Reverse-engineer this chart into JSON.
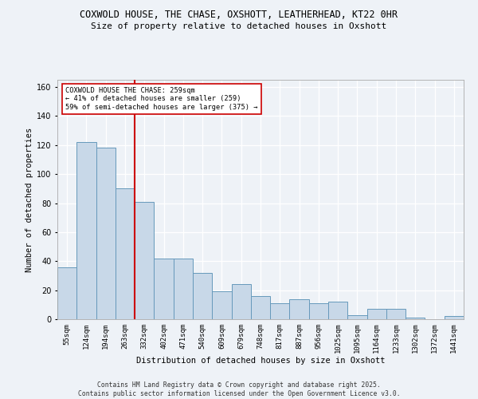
{
  "title_line1": "COXWOLD HOUSE, THE CHASE, OXSHOTT, LEATHERHEAD, KT22 0HR",
  "title_line2": "Size of property relative to detached houses in Oxshott",
  "xlabel": "Distribution of detached houses by size in Oxshott",
  "ylabel": "Number of detached properties",
  "categories": [
    "55sqm",
    "124sqm",
    "194sqm",
    "263sqm",
    "332sqm",
    "402sqm",
    "471sqm",
    "540sqm",
    "609sqm",
    "679sqm",
    "748sqm",
    "817sqm",
    "887sqm",
    "956sqm",
    "1025sqm",
    "1095sqm",
    "1164sqm",
    "1233sqm",
    "1302sqm",
    "1372sqm",
    "1441sqm"
  ],
  "bar_heights": [
    36,
    122,
    118,
    90,
    81,
    42,
    42,
    32,
    19,
    24,
    16,
    11,
    14,
    11,
    12,
    3,
    7,
    7,
    1,
    0,
    2
  ],
  "bar_color": "#c8d8e8",
  "bar_edge_color": "#6699bb",
  "vline_x_index": 3.5,
  "vline_color": "#cc0000",
  "annotation_text": "COXWOLD HOUSE THE CHASE: 259sqm\n← 41% of detached houses are smaller (259)\n59% of semi-detached houses are larger (375) →",
  "annotation_box_facecolor": "#ffffff",
  "annotation_box_edgecolor": "#cc0000",
  "ylim": [
    0,
    165
  ],
  "yticks": [
    0,
    20,
    40,
    60,
    80,
    100,
    120,
    140,
    160
  ],
  "background_color": "#eef2f7",
  "grid_color": "#ffffff",
  "footer_text": "Contains HM Land Registry data © Crown copyright and database right 2025.\nContains public sector information licensed under the Open Government Licence v3.0."
}
